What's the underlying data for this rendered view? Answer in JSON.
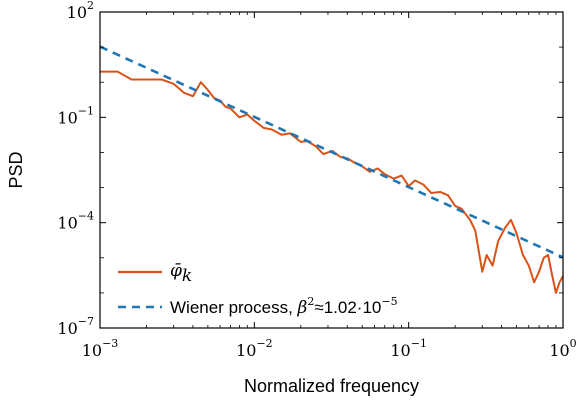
{
  "chart_data": {
    "type": "line",
    "xlabel": "Normalized frequency",
    "ylabel": "PSD",
    "xscale": "log",
    "yscale": "log",
    "xlim": [
      0.001,
      1
    ],
    "ylim": [
      1e-07,
      100
    ],
    "x_ticks": [
      {
        "base": "10",
        "exp": "−3"
      },
      {
        "base": "10",
        "exp": "−2"
      },
      {
        "base": "10",
        "exp": "−1"
      },
      {
        "base": "10",
        "exp": "0"
      }
    ],
    "y_ticks": [
      {
        "base": "10",
        "exp": "−7"
      },
      {
        "base": "10",
        "exp": "−4"
      },
      {
        "base": "10",
        "exp": "−1"
      },
      {
        "base": "10",
        "exp": "2"
      }
    ],
    "grid": false,
    "legend_position": "bottom-left",
    "colors": {
      "psd": "#d95319",
      "wiener": "#1f77b4"
    },
    "series": [
      {
        "name": "φ̄_k",
        "style": "solid",
        "x": [
          0.001,
          0.0013,
          0.0016,
          0.002,
          0.0025,
          0.003,
          0.0035,
          0.004,
          0.0045,
          0.005,
          0.0055,
          0.006,
          0.0065,
          0.007,
          0.008,
          0.009,
          0.01,
          0.0115,
          0.013,
          0.015,
          0.017,
          0.02,
          0.022,
          0.025,
          0.028,
          0.032,
          0.036,
          0.04,
          0.045,
          0.05,
          0.056,
          0.063,
          0.07,
          0.08,
          0.09,
          0.1,
          0.11,
          0.125,
          0.14,
          0.16,
          0.18,
          0.2,
          0.22,
          0.25,
          0.27,
          0.3,
          0.32,
          0.35,
          0.38,
          0.42,
          0.46,
          0.5,
          0.55,
          0.6,
          0.65,
          0.7,
          0.75,
          0.8,
          0.85,
          0.9,
          0.95,
          1.0
        ],
        "y": [
          2.0,
          2.0,
          1.2,
          1.2,
          1.2,
          0.9,
          0.5,
          0.4,
          1.0,
          0.6,
          0.35,
          0.3,
          0.2,
          0.18,
          0.1,
          0.12,
          0.08,
          0.05,
          0.045,
          0.032,
          0.035,
          0.02,
          0.021,
          0.015,
          0.009,
          0.011,
          0.0075,
          0.0068,
          0.005,
          0.004,
          0.0028,
          0.0035,
          0.0024,
          0.0018,
          0.0022,
          0.0011,
          0.0016,
          0.0012,
          0.0007,
          0.00075,
          0.0006,
          0.0003,
          0.00025,
          0.00012,
          6e-05,
          4e-06,
          1.2e-05,
          6e-06,
          3e-05,
          7e-05,
          0.00012,
          5e-05,
          1.2e-05,
          6e-06,
          2e-06,
          4e-06,
          1e-05,
          1.2e-05,
          3.2e-06,
          1e-06,
          2e-06,
          3e-06
        ]
      },
      {
        "name": "Wiener process, β²≈1.02·10⁻⁵",
        "style": "dashed",
        "x": [
          0.001,
          1
        ],
        "y": [
          10.3,
          1.03e-05
        ]
      }
    ],
    "legend": {
      "psd_symbol": "φ̄",
      "psd_sub": "k",
      "wiener_text": "Wiener process, ",
      "beta": "β",
      "beta_sup": "2",
      "approx_val": "≈1.02·10",
      "exp": "−5"
    }
  }
}
